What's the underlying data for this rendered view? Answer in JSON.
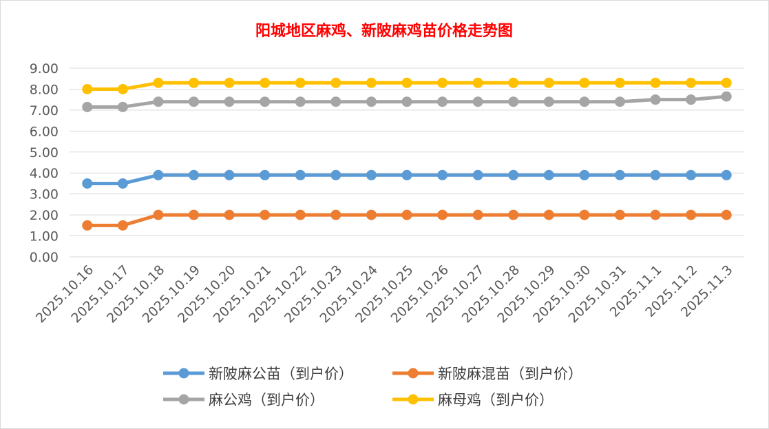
{
  "chart_data": {
    "type": "line",
    "title": "阳城地区麻鸡、新陂麻鸡苗价格走势图",
    "title_color": "#ff0000",
    "categories": [
      "2025.10.16",
      "2025.10.17",
      "2025.10.18",
      "2025.10.19",
      "2025.10.20",
      "2025.10.21",
      "2025.10.22",
      "2025.10.23",
      "2025.10.24",
      "2025.10.25",
      "2025.10.26",
      "2025.10.27",
      "2025.10.28",
      "2025.10.29",
      "2025.10.30",
      "2025.10.31",
      "2025.11.1",
      "2025.11.2",
      "2025.11.3"
    ],
    "ylim": [
      0,
      9
    ],
    "y_ticks": [
      "0.00",
      "1.00",
      "2.00",
      "3.00",
      "4.00",
      "5.00",
      "6.00",
      "7.00",
      "8.00",
      "9.00"
    ],
    "grid": true,
    "legend_position": "bottom",
    "series": [
      {
        "name": "新陂麻公苗（到户价）",
        "color": "#5b9bd5",
        "values": [
          3.5,
          3.5,
          3.9,
          3.9,
          3.9,
          3.9,
          3.9,
          3.9,
          3.9,
          3.9,
          3.9,
          3.9,
          3.9,
          3.9,
          3.9,
          3.9,
          3.9,
          3.9,
          3.9
        ]
      },
      {
        "name": "新陂麻混苗（到户价）",
        "color": "#ed7d31",
        "values": [
          1.5,
          1.5,
          2.0,
          2.0,
          2.0,
          2.0,
          2.0,
          2.0,
          2.0,
          2.0,
          2.0,
          2.0,
          2.0,
          2.0,
          2.0,
          2.0,
          2.0,
          2.0,
          2.0
        ]
      },
      {
        "name": "麻公鸡（到户价）",
        "color": "#a5a5a5",
        "values": [
          7.15,
          7.15,
          7.4,
          7.4,
          7.4,
          7.4,
          7.4,
          7.4,
          7.4,
          7.4,
          7.4,
          7.4,
          7.4,
          7.4,
          7.4,
          7.4,
          7.5,
          7.5,
          7.65
        ]
      },
      {
        "name": "麻母鸡（到户价）",
        "color": "#ffc000",
        "values": [
          8.0,
          8.0,
          8.3,
          8.3,
          8.3,
          8.3,
          8.3,
          8.3,
          8.3,
          8.3,
          8.3,
          8.3,
          8.3,
          8.3,
          8.3,
          8.3,
          8.3,
          8.3,
          8.3
        ]
      }
    ]
  }
}
